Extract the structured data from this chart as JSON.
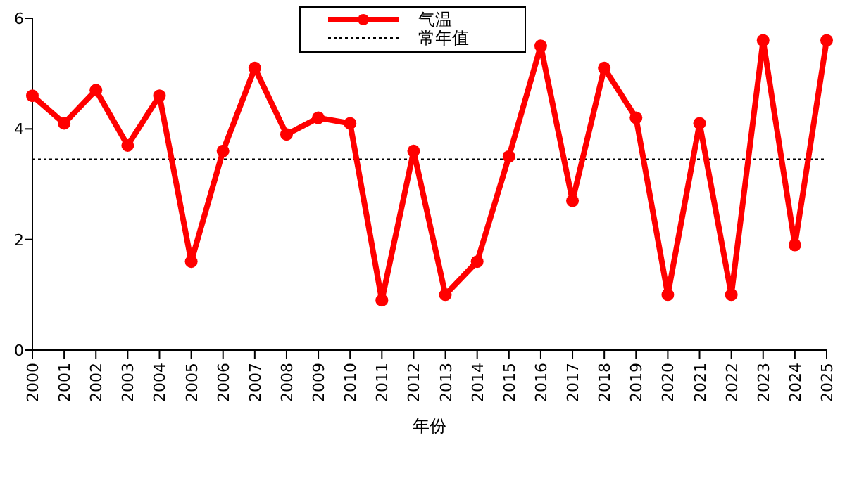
{
  "chart_data": {
    "type": "line",
    "xlabel": "年份",
    "categories": [
      "2000",
      "2001",
      "2002",
      "2003",
      "2004",
      "2005",
      "2006",
      "2007",
      "2008",
      "2009",
      "2010",
      "2011",
      "2012",
      "2013",
      "2014",
      "2015",
      "2016",
      "2017",
      "2018",
      "2019",
      "2020",
      "2021",
      "2022",
      "2023",
      "2024",
      "2025"
    ],
    "series": [
      {
        "name": "气温",
        "color": "#ff0000",
        "values": [
          4.6,
          4.1,
          4.7,
          3.7,
          4.6,
          1.6,
          3.6,
          5.1,
          3.9,
          4.2,
          4.1,
          0.9,
          3.6,
          1.0,
          1.6,
          3.5,
          5.5,
          2.7,
          5.1,
          4.2,
          1.0,
          4.1,
          1.0,
          5.6,
          1.9,
          5.6
        ]
      }
    ],
    "ref_lines": [
      {
        "axis": "y",
        "value": 3.45,
        "label": "常年值",
        "color": "#000000",
        "line_style": "dotted"
      }
    ],
    "ylim": [
      0,
      6
    ],
    "yticks": [
      0,
      2,
      4,
      6
    ],
    "marker": "circle",
    "line_style": "solid",
    "grid": false,
    "legend": "top"
  }
}
